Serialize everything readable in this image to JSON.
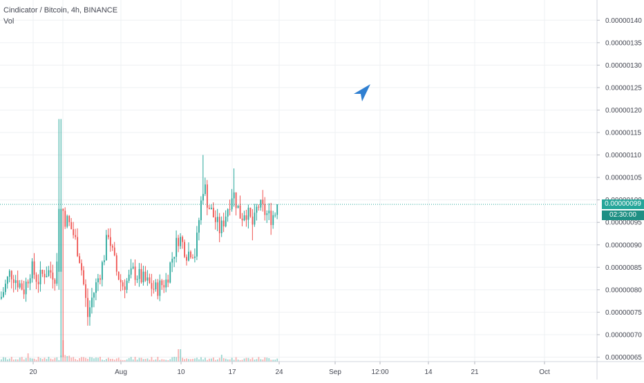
{
  "header": {
    "symbol_line": "Cindicator / Bitcoin, 4h, BINANCE",
    "volume_label": "Vol"
  },
  "colors": {
    "up": "#26a69a",
    "down": "#ef5350",
    "grid": "#eef0f3",
    "axis_text": "#434651",
    "logo": "#2f7fd1"
  },
  "overlay": {
    "icon": "navigation-arrow-icon"
  },
  "price_tag": {
    "price": "0.00000099",
    "countdown": "02:30:00"
  },
  "chart_data": {
    "type": "candlestick",
    "title": "Cindicator / Bitcoin, 4h, BINANCE",
    "grid": true,
    "legend": "top-left",
    "ylim": [
      6.4e-07,
      1.445e-06
    ],
    "y_ticks": [
      "0.00000065",
      "0.00000070",
      "0.00000075",
      "0.00000080",
      "0.00000085",
      "0.00000090",
      "0.00000095",
      "0.00000100",
      "0.00000105",
      "0.00000110",
      "0.00000115",
      "0.00000120",
      "0.00000125",
      "0.00000130",
      "0.00000135",
      "0.00000140"
    ],
    "x_ticks": [
      "20",
      "Aug",
      "10",
      "17",
      "24",
      "Sep",
      "12:00",
      "14",
      "21",
      "Oct"
    ],
    "last_price": 9.9e-07,
    "key_points": {
      "max_high": 1.18e-06,
      "min_low": 7.2e-07,
      "last_close": 9.9e-07
    }
  }
}
